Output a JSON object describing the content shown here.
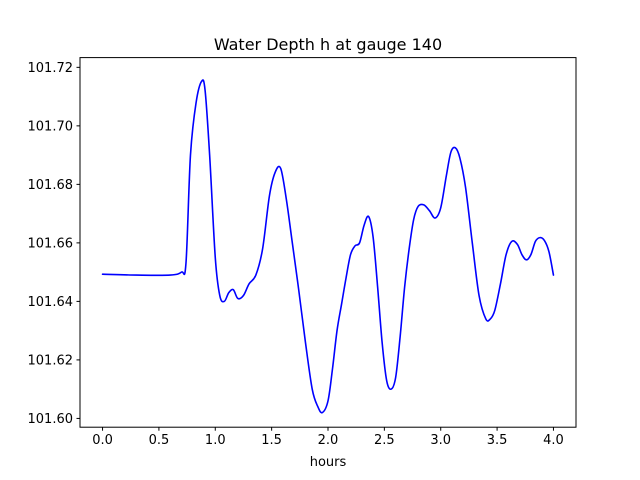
{
  "chart_data": {
    "type": "line",
    "title": "Water Depth h at gauge 140",
    "xlabel": "hours",
    "ylabel": "",
    "xlim": [
      -0.2,
      4.2
    ],
    "ylim": [
      101.597,
      101.72333
    ],
    "grid": false,
    "x_ticks": [
      0.0,
      0.5,
      1.0,
      1.5,
      2.0,
      2.5,
      3.0,
      3.5,
      4.0
    ],
    "x_tick_labels": [
      "0.0",
      "0.5",
      "1.0",
      "1.5",
      "2.0",
      "2.5",
      "3.0",
      "3.5",
      "4.0"
    ],
    "y_ticks": [
      101.6,
      101.62,
      101.64,
      101.66,
      101.68,
      101.7,
      101.72
    ],
    "y_tick_labels": [
      "101.60",
      "101.62",
      "101.64",
      "101.66",
      "101.68",
      "101.70",
      "101.72"
    ],
    "series": [
      {
        "color": "#0000ff",
        "x": [
          0.0,
          0.3,
          0.6,
          0.7,
          0.74,
          0.78,
          0.83,
          0.88,
          0.91,
          0.95,
          1.0,
          1.04,
          1.08,
          1.12,
          1.16,
          1.2,
          1.25,
          1.3,
          1.36,
          1.42,
          1.48,
          1.53,
          1.58,
          1.63,
          1.68,
          1.74,
          1.8,
          1.86,
          1.91,
          1.95,
          2.0,
          2.04,
          2.08,
          2.12,
          2.16,
          2.2,
          2.24,
          2.28,
          2.32,
          2.36,
          2.4,
          2.44,
          2.48,
          2.52,
          2.56,
          2.6,
          2.64,
          2.68,
          2.72,
          2.76,
          2.8,
          2.85,
          2.9,
          2.95,
          3.0,
          3.05,
          3.09,
          3.13,
          3.17,
          3.22,
          3.28,
          3.34,
          3.4,
          3.44,
          3.48,
          3.53,
          3.58,
          3.63,
          3.68,
          3.72,
          3.76,
          3.8,
          3.84,
          3.88,
          3.92,
          3.96,
          4.0
        ],
        "y": [
          101.6493,
          101.649,
          101.649,
          101.65,
          101.653,
          101.69,
          101.708,
          101.7153,
          101.712,
          101.69,
          101.655,
          101.642,
          101.64,
          101.643,
          101.644,
          101.641,
          101.642,
          101.646,
          101.649,
          101.658,
          101.676,
          101.684,
          101.6855,
          101.675,
          101.661,
          101.644,
          101.626,
          101.61,
          101.604,
          101.602,
          101.606,
          101.617,
          101.63,
          101.639,
          101.648,
          101.656,
          101.659,
          101.66,
          101.666,
          101.669,
          101.662,
          101.645,
          101.626,
          101.613,
          101.61,
          101.614,
          101.628,
          101.645,
          101.658,
          101.668,
          101.6725,
          101.673,
          101.671,
          101.6685,
          101.672,
          101.683,
          101.691,
          101.6925,
          101.689,
          101.679,
          101.66,
          101.642,
          101.634,
          101.634,
          101.637,
          101.646,
          101.656,
          101.6605,
          101.6595,
          101.656,
          101.6542,
          101.656,
          101.6605,
          101.6618,
          101.6608,
          101.657,
          101.649
        ]
      }
    ]
  }
}
